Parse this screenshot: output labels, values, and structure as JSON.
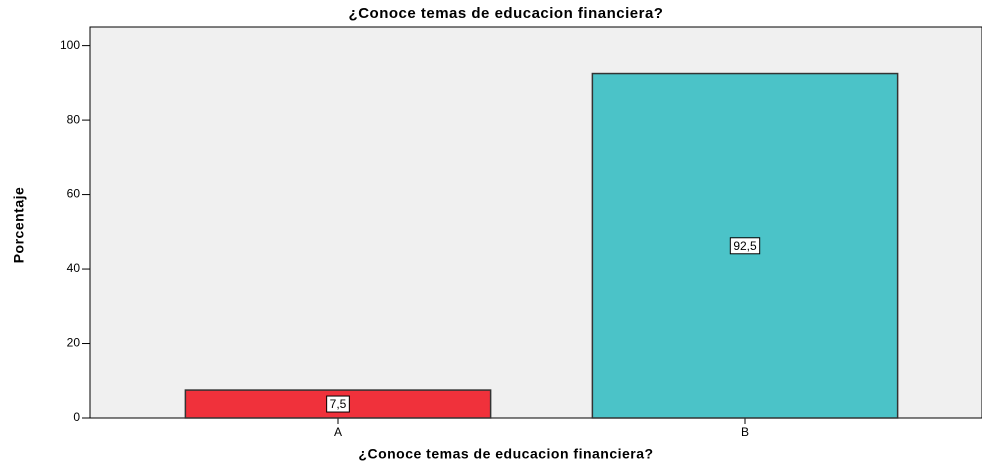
{
  "chart_data": {
    "type": "bar",
    "title": "¿Conoce temas de educacion financiera?",
    "x_label": "¿Conoce temas de educacion financiera?",
    "y_label": "Porcentaje",
    "categories": [
      "A",
      "B"
    ],
    "values": [
      7.5,
      92.5
    ],
    "value_labels": [
      "7,5",
      "92,5"
    ],
    "colors": [
      "#f0313b",
      "#4bc3c8"
    ],
    "ylim": [
      0,
      105
    ],
    "yticks": [
      0,
      20,
      40,
      60,
      80,
      100
    ]
  }
}
